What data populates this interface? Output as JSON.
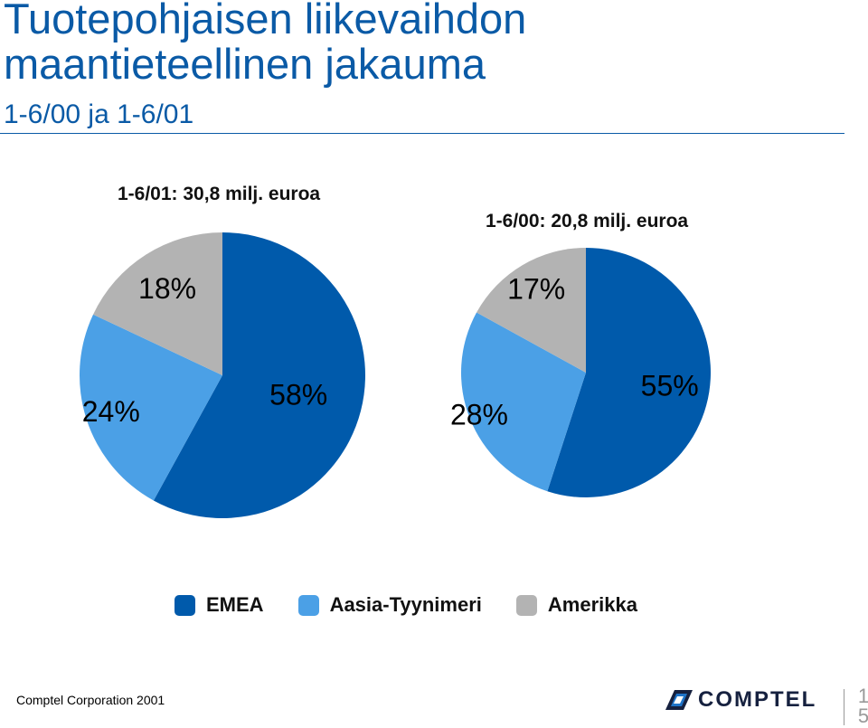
{
  "header": {
    "title_line1": "Tuotepohjaisen liikevaihdon",
    "title_line2": "maantieteellinen jakauma",
    "subtitle": "1-6/00 ja 1-6/01"
  },
  "colors": {
    "EMEA": "#005aab",
    "Aasia-Tyynimeri": "#4ba0e6",
    "Amerikka": "#b3b3b3",
    "title": "#0a5aa6"
  },
  "chart_data": [
    {
      "type": "pie",
      "title": "1-6/01: 30,8 milj. euroa",
      "categories": [
        "EMEA",
        "Aasia-Tyynimeri",
        "Amerikka"
      ],
      "values": [
        58,
        24,
        18
      ],
      "labels": [
        "58%",
        "24%",
        "18%"
      ]
    },
    {
      "type": "pie",
      "title": "1-6/00: 20,8 milj. euroa",
      "categories": [
        "EMEA",
        "Aasia-Tyynimeri",
        "Amerikka"
      ],
      "values": [
        55,
        28,
        17
      ],
      "labels": [
        "55%",
        "28%",
        "17%"
      ]
    }
  ],
  "legend": {
    "placement": "bottom",
    "items": [
      "EMEA",
      "Aasia-Tyynimeri",
      "Amerikka"
    ]
  },
  "footer": {
    "copyright": "Comptel Corporation 2001",
    "logo_text": "COMPTEL",
    "page_number": "15"
  }
}
